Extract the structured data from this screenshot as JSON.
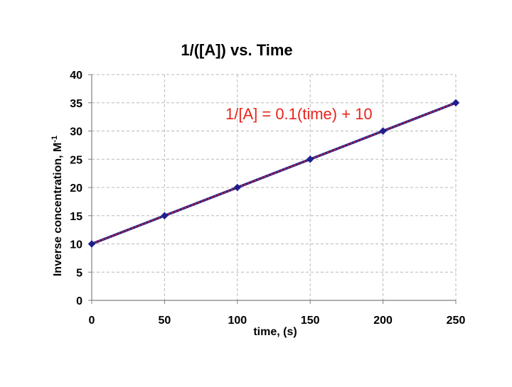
{
  "chart_data": {
    "type": "line",
    "title": "1/([A]) vs. Time",
    "xlabel": "time, (s)",
    "ylabel": "Inverse concentration, M",
    "ylabel_superscript": "-1",
    "xlim": [
      0,
      250
    ],
    "ylim": [
      0,
      40
    ],
    "x_ticks": [
      "0",
      "50",
      "100",
      "150",
      "200",
      "250"
    ],
    "y_ticks": [
      "0",
      "5",
      "10",
      "15",
      "20",
      "25",
      "30",
      "35",
      "40"
    ],
    "grid": true,
    "annotation": "1/[A] = 0.1(time) + 10",
    "series": [
      {
        "x": [
          0,
          50,
          100,
          150,
          200,
          250
        ],
        "values": [
          10,
          15,
          20,
          25,
          30,
          35
        ],
        "color": "#1f1f8f",
        "marker": "diamond"
      }
    ],
    "trendline": {
      "slope": 0.1,
      "intercept": 10,
      "color": "#e8241c"
    }
  }
}
